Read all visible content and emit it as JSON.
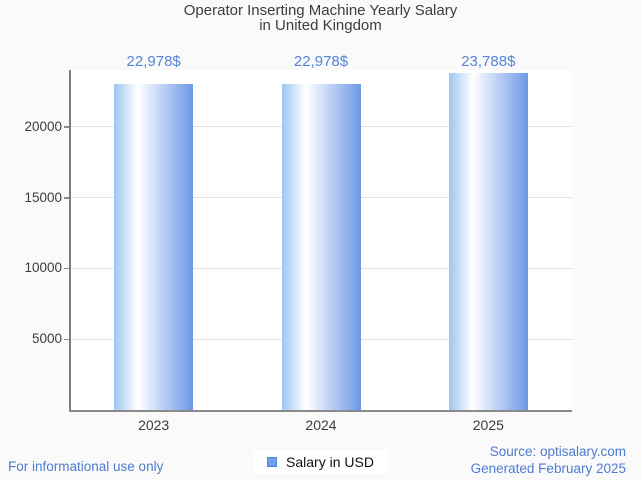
{
  "title": {
    "line1": "Operator Inserting Machine Yearly Salary",
    "line2": "in United Kingdom"
  },
  "chart_data": {
    "type": "bar",
    "title": "Operator Inserting Machine Yearly Salary in United Kingdom",
    "categories": [
      "2023",
      "2024",
      "2025"
    ],
    "series": [
      {
        "name": "Salary in USD",
        "values": [
          22978,
          22978,
          23788
        ]
      }
    ],
    "value_labels": [
      "22,978$",
      "22,978$",
      "23,788$"
    ],
    "xlabel": "",
    "ylabel": "",
    "yticks": [
      5000,
      10000,
      15000,
      20000
    ],
    "ylim": [
      0,
      24000
    ],
    "grid": true,
    "legend_position": "bottom"
  },
  "legend": {
    "label": "Salary in USD",
    "swatch_color": "#6fa0e8"
  },
  "footer": {
    "left": "For informational use only",
    "source": "Source: optisalary.com",
    "generated": "Generated February 2025"
  },
  "colors": {
    "background": "#fafafa",
    "plot_background": "#ffffff",
    "grid": "#e4e4e4",
    "axis": "#8a8a8a",
    "text": "#3d3d3d",
    "value_label": "#5585d6",
    "footer_link": "#4d7cd0",
    "bar_gradient": [
      "#9dc6f0",
      "#ffffff",
      "#6d98e8"
    ]
  }
}
